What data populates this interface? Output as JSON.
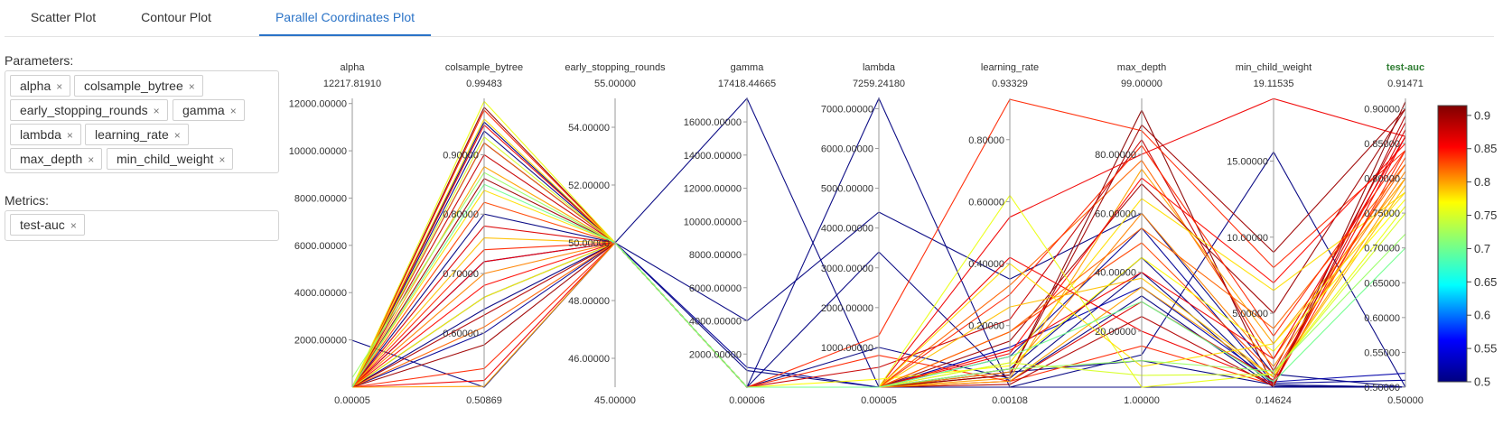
{
  "tabs": [
    {
      "label": "Scatter Plot",
      "active": false
    },
    {
      "label": "Contour Plot",
      "active": false
    },
    {
      "label": "Parallel Coordinates Plot",
      "active": true
    }
  ],
  "parameters_label": "Parameters:",
  "parameters": [
    "alpha",
    "colsample_bytree",
    "early_stopping_rounds",
    "gamma",
    "lambda",
    "learning_rate",
    "max_depth",
    "min_child_weight"
  ],
  "metrics_label": "Metrics:",
  "metrics": [
    "test-auc"
  ],
  "colors": {
    "accent": "#2a73c7",
    "metric_axis_title": "#2e7d32"
  },
  "chart_data": {
    "type": "parallel_coordinates",
    "axes": [
      {
        "name": "alpha",
        "max_label": "12217.81910",
        "min_label": "0.00005",
        "range": [
          5e-05,
          12217.8191
        ],
        "ticks": [
          "2000.00000",
          "4000.00000",
          "6000.00000",
          "8000.00000",
          "10000.00000",
          "12000.00000"
        ]
      },
      {
        "name": "colsample_bytree",
        "max_label": "0.99483",
        "min_label": "0.50869",
        "range": [
          0.50869,
          0.99483
        ],
        "ticks": [
          "0.60000",
          "0.70000",
          "0.80000",
          "0.90000"
        ]
      },
      {
        "name": "early_stopping_rounds",
        "max_label": "55.00000",
        "min_label": "45.00000",
        "range": [
          45,
          55
        ],
        "ticks": [
          "46.00000",
          "48.00000",
          "50.00000",
          "52.00000",
          "54.00000"
        ]
      },
      {
        "name": "gamma",
        "max_label": "17418.44665",
        "min_label": "0.00006",
        "range": [
          6e-05,
          17418.44665
        ],
        "ticks": [
          "2000.00000",
          "4000.00000",
          "6000.00000",
          "8000.00000",
          "10000.00000",
          "12000.00000",
          "14000.00000",
          "16000.00000"
        ]
      },
      {
        "name": "lambda",
        "max_label": "7259.24180",
        "min_label": "0.00005",
        "range": [
          5e-05,
          7259.2418
        ],
        "ticks": [
          "1000.00000",
          "2000.00000",
          "3000.00000",
          "4000.00000",
          "5000.00000",
          "6000.00000",
          "7000.00000"
        ]
      },
      {
        "name": "learning_rate",
        "max_label": "0.93329",
        "min_label": "0.00108",
        "range": [
          0.00108,
          0.93329
        ],
        "ticks": [
          "0.20000",
          "0.40000",
          "0.60000",
          "0.80000"
        ]
      },
      {
        "name": "max_depth",
        "max_label": "99.00000",
        "min_label": "1.00000",
        "range": [
          1,
          99
        ],
        "ticks": [
          "20.00000",
          "40.00000",
          "60.00000",
          "80.00000"
        ]
      },
      {
        "name": "min_child_weight",
        "max_label": "19.11535",
        "min_label": "0.14624",
        "range": [
          0.14624,
          19.11535
        ],
        "ticks": [
          "5.00000",
          "10.00000",
          "15.00000"
        ]
      },
      {
        "name": "test-auc",
        "max_label": "0.91471",
        "min_label": "0.50000",
        "range": [
          0.5,
          0.91471
        ],
        "ticks": [
          "0.50000",
          "0.55000",
          "0.60000",
          "0.65000",
          "0.70000",
          "0.75000",
          "0.80000",
          "0.85000",
          "0.90000"
        ]
      }
    ],
    "colorbar": {
      "range": [
        0.5,
        0.91471
      ],
      "ticks": [
        "0.5",
        "0.55",
        "0.6",
        "0.65",
        "0.7",
        "0.75",
        "0.8",
        "0.85",
        "0.9"
      ]
    },
    "lines": [
      [
        1980,
        0.5087,
        50,
        17418,
        5e-05,
        0.0011,
        1,
        0.146,
        0.5
      ],
      [
        5e-05,
        0.955,
        50,
        6e-05,
        7259,
        0.0011,
        12,
        15.6,
        0.5
      ],
      [
        5e-05,
        0.94,
        50,
        4000,
        4400,
        0.35,
        60,
        1.0,
        0.5
      ],
      [
        5e-05,
        0.92,
        50,
        1000,
        5e-05,
        0.06,
        45,
        0.3,
        0.5
      ],
      [
        5e-05,
        0.8,
        50,
        6e-05,
        1000,
        0.03,
        40,
        0.2,
        0.5
      ],
      [
        5e-05,
        0.72,
        50,
        6e-05,
        5e-05,
        0.13,
        35,
        0.5,
        0.52
      ],
      [
        5e-05,
        0.66,
        50,
        6e-05,
        3400,
        0.02,
        32,
        0.15,
        0.5
      ],
      [
        5e-05,
        0.64,
        50,
        6e-05,
        5e-05,
        0.05,
        10,
        0.3,
        0.5
      ],
      [
        5e-05,
        0.6,
        50,
        1200,
        5e-05,
        0.1,
        55,
        0.4,
        0.51
      ],
      [
        5e-05,
        0.98,
        50,
        6e-05,
        5e-05,
        0.04,
        95,
        0.2,
        0.91
      ],
      [
        5e-05,
        0.975,
        50,
        6e-05,
        1300,
        0.93,
        88,
        8.0,
        0.84
      ],
      [
        5e-05,
        0.95,
        50,
        6e-05,
        5e-05,
        0.55,
        80,
        19.1,
        0.86
      ],
      [
        5e-05,
        0.92,
        50,
        6e-05,
        5e-05,
        0.33,
        78,
        2.0,
        0.82
      ],
      [
        5e-05,
        0.9,
        50,
        6e-05,
        500,
        0.22,
        85,
        1.2,
        0.88
      ],
      [
        5e-05,
        0.88,
        50,
        6e-05,
        5e-05,
        0.03,
        75,
        3.0,
        0.8
      ],
      [
        5e-05,
        0.86,
        50,
        6e-05,
        5e-05,
        0.15,
        70,
        5.0,
        0.9
      ],
      [
        5e-05,
        0.84,
        50,
        6e-05,
        5e-05,
        0.08,
        65,
        6.5,
        0.78
      ],
      [
        5e-05,
        0.82,
        50,
        6e-05,
        5e-05,
        0.18,
        50,
        1.0,
        0.83
      ],
      [
        5e-05,
        0.78,
        50,
        6e-05,
        5e-05,
        0.02,
        30,
        0.6,
        0.87
      ],
      [
        5e-05,
        0.76,
        50,
        6e-05,
        5e-05,
        0.26,
        38,
        0.8,
        0.79
      ],
      [
        5e-05,
        0.74,
        50,
        6e-05,
        800,
        0.02,
        15,
        0.3,
        0.84
      ],
      [
        5e-05,
        0.72,
        50,
        6e-05,
        5e-05,
        0.42,
        20,
        0.4,
        0.86
      ],
      [
        5e-05,
        0.7,
        50,
        6e-05,
        5e-05,
        0.05,
        60,
        1.5,
        0.81
      ],
      [
        5e-05,
        0.68,
        50,
        6e-05,
        5e-05,
        0.11,
        72,
        7.0,
        0.85
      ],
      [
        5e-05,
        0.66,
        50,
        6e-05,
        200,
        0.07,
        45,
        2.5,
        0.77
      ],
      [
        5e-05,
        0.63,
        50,
        6e-05,
        5e-05,
        0.01,
        25,
        0.2,
        0.89
      ],
      [
        5e-05,
        0.61,
        50,
        6e-05,
        5e-05,
        0.18,
        55,
        4.0,
        0.82
      ],
      [
        5e-05,
        0.58,
        50,
        6e-05,
        5e-05,
        0.04,
        90,
        9.0,
        0.9
      ],
      [
        5e-05,
        0.54,
        50,
        6e-05,
        5e-05,
        0.3,
        83,
        3.5,
        0.84
      ],
      [
        5e-05,
        0.52,
        50,
        6e-05,
        5e-05,
        0.12,
        40,
        2.0,
        0.86
      ],
      [
        5e-05,
        0.51,
        50,
        6e-05,
        5e-05,
        0.02,
        35,
        0.8,
        0.8
      ],
      [
        5e-05,
        0.99,
        50,
        6e-05,
        5e-05,
        0.62,
        1,
        1.0,
        0.76
      ],
      [
        5e-05,
        0.96,
        50,
        6e-05,
        5e-05,
        0.4,
        8,
        3.0,
        0.78
      ],
      [
        5e-05,
        0.93,
        50,
        6e-05,
        5e-05,
        0.08,
        5,
        1.0,
        0.75
      ],
      [
        400,
        0.87,
        50,
        6e-05,
        5e-05,
        0.06,
        10,
        1.2,
        0.72
      ],
      [
        5e-05,
        0.85,
        50,
        6e-05,
        5e-05,
        0.1,
        30,
        0.5,
        0.7
      ]
    ]
  }
}
